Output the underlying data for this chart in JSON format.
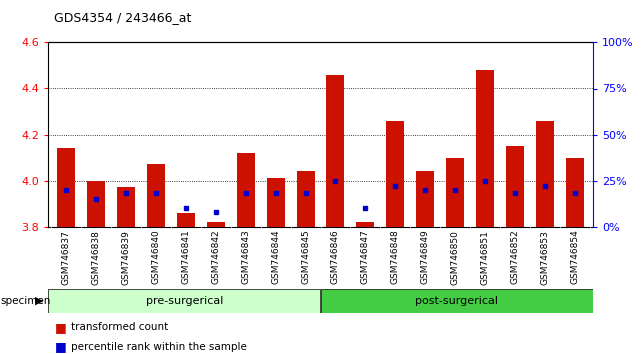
{
  "title": "GDS4354 / 243466_at",
  "categories": [
    "GSM746837",
    "GSM746838",
    "GSM746839",
    "GSM746840",
    "GSM746841",
    "GSM746842",
    "GSM746843",
    "GSM746844",
    "GSM746845",
    "GSM746846",
    "GSM746847",
    "GSM746848",
    "GSM746849",
    "GSM746850",
    "GSM746851",
    "GSM746852",
    "GSM746853",
    "GSM746854"
  ],
  "red_values": [
    4.14,
    4.0,
    3.97,
    4.07,
    3.86,
    3.82,
    4.12,
    4.01,
    4.04,
    4.46,
    3.82,
    4.26,
    4.04,
    4.1,
    4.48,
    4.15,
    4.26,
    4.1
  ],
  "blue_values_pct": [
    20,
    15,
    18,
    18,
    10,
    8,
    18,
    18,
    18,
    25,
    10,
    22,
    20,
    20,
    25,
    18,
    22,
    18
  ],
  "ymin": 3.8,
  "ymax": 4.6,
  "yticks": [
    3.8,
    4.0,
    4.2,
    4.4,
    4.6
  ],
  "y2ticks": [
    0,
    25,
    50,
    75,
    100
  ],
  "y2labels": [
    "0%",
    "25%",
    "50%",
    "75%",
    "100%"
  ],
  "pre_surgical_count": 9,
  "post_surgical_count": 9,
  "pre_label": "pre-surgerical",
  "post_label": "post-surgerical",
  "pre_color": "#ccffcc",
  "post_color": "#44cc44",
  "bar_color_red": "#cc1100",
  "bar_color_blue": "#0000cc",
  "specimen_label": "specimen",
  "legend1": "transformed count",
  "legend2": "percentile rank within the sample"
}
